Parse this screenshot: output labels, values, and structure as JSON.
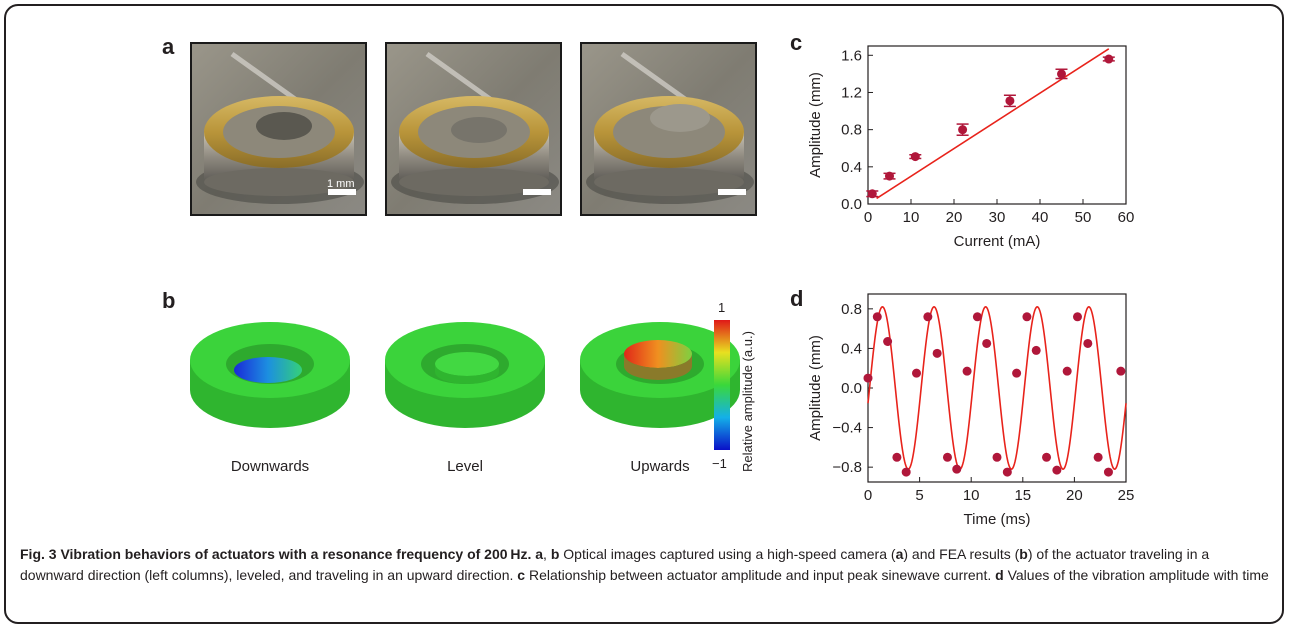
{
  "panels": {
    "a": "a",
    "b": "b",
    "c": "c",
    "d": "d"
  },
  "panel_a": {
    "scale_label": "1 mm"
  },
  "panel_b": {
    "labels": [
      "Downwards",
      "Level",
      "Upwards"
    ],
    "colorbar_max": "1",
    "colorbar_min": "−1",
    "colorbar_title": "Relative amplitude (a.u.)",
    "colors": {
      "ring": "#3bd33b",
      "down_center": "#1e40d8",
      "up_center": "#e0401a"
    }
  },
  "chart_data": [
    {
      "type": "scatter",
      "panel": "c",
      "xlabel": "Current (mA)",
      "ylabel": "Amplitude (mm)",
      "xlim": [
        0,
        60
      ],
      "ylim": [
        0,
        1.7
      ],
      "xticks": [
        "0",
        "10",
        "20",
        "30",
        "40",
        "50",
        "60"
      ],
      "yticks": [
        "0.0",
        "0.4",
        "0.8",
        "1.2",
        "1.6"
      ],
      "points": [
        {
          "x": 1,
          "y": 0.11,
          "err": 0.03
        },
        {
          "x": 5,
          "y": 0.3,
          "err": 0.03
        },
        {
          "x": 11,
          "y": 0.51,
          "err": 0.02
        },
        {
          "x": 22,
          "y": 0.8,
          "err": 0.06
        },
        {
          "x": 33,
          "y": 1.11,
          "err": 0.06
        },
        {
          "x": 45,
          "y": 1.4,
          "err": 0.05
        },
        {
          "x": 56,
          "y": 1.56,
          "err": 0.02
        }
      ],
      "fit_line": {
        "x": [
          2,
          56
        ],
        "y": [
          0.06,
          1.67
        ]
      },
      "colors": {
        "points": "#b0173a",
        "line": "#e8231b"
      }
    },
    {
      "type": "line",
      "panel": "d",
      "xlabel": "Time (ms)",
      "ylabel": "Amplitude (mm)",
      "xlim": [
        0,
        25
      ],
      "ylim": [
        -0.95,
        0.95
      ],
      "xticks": [
        "0",
        "5",
        "10",
        "15",
        "20",
        "25"
      ],
      "yticks": [
        "0.8",
        "0.4",
        "0.0",
        "−0.4",
        "−0.8"
      ],
      "sine_fit": {
        "amplitude": 0.82,
        "period_ms": 5.0,
        "phase_ms": 0.15
      },
      "points": [
        {
          "x": 0.0,
          "y": 0.1
        },
        {
          "x": 0.9,
          "y": 0.72
        },
        {
          "x": 1.9,
          "y": 0.47
        },
        {
          "x": 2.8,
          "y": -0.7
        },
        {
          "x": 3.7,
          "y": -0.85
        },
        {
          "x": 4.7,
          "y": 0.15
        },
        {
          "x": 5.8,
          "y": 0.72
        },
        {
          "x": 6.7,
          "y": 0.35
        },
        {
          "x": 7.7,
          "y": -0.7
        },
        {
          "x": 8.6,
          "y": -0.82
        },
        {
          "x": 9.6,
          "y": 0.17
        },
        {
          "x": 10.6,
          "y": 0.72
        },
        {
          "x": 11.5,
          "y": 0.45
        },
        {
          "x": 12.5,
          "y": -0.7
        },
        {
          "x": 13.5,
          "y": -0.85
        },
        {
          "x": 14.4,
          "y": 0.15
        },
        {
          "x": 15.4,
          "y": 0.72
        },
        {
          "x": 16.3,
          "y": 0.38
        },
        {
          "x": 17.3,
          "y": -0.7
        },
        {
          "x": 18.3,
          "y": -0.83
        },
        {
          "x": 19.3,
          "y": 0.17
        },
        {
          "x": 20.3,
          "y": 0.72
        },
        {
          "x": 21.3,
          "y": 0.45
        },
        {
          "x": 22.3,
          "y": -0.7
        },
        {
          "x": 23.3,
          "y": -0.85
        },
        {
          "x": 24.5,
          "y": 0.17
        }
      ],
      "colors": {
        "points": "#b0173a",
        "line": "#e8231b"
      }
    }
  ],
  "caption": {
    "fig": "Fig. 3 Vibration behaviors of actuators with a resonance frequency of 200 Hz.",
    "a": "a",
    "sep1": ", ",
    "b": "b",
    "t1": " Optical images captured using a high-speed camera (",
    "a2": "a",
    "t2": ") and FEA results (",
    "b2": "b",
    "t3": ") of the actuator traveling in a downward direction (left columns), leveled, and traveling in an upward direction. ",
    "c": "c",
    "t4": " Relationship between actuator amplitude and input peak sinewave current. ",
    "d": "d",
    "t5": " Values of the vibration amplitude with time"
  }
}
